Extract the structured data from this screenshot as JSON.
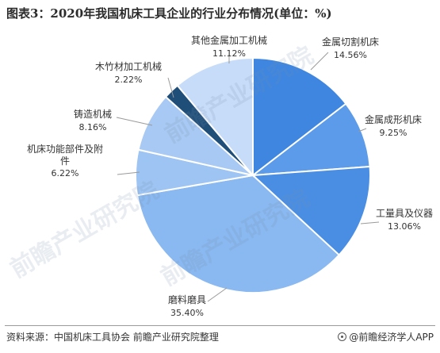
{
  "chart_data": {
    "type": "pie",
    "title": "图表3：2020年我国机床工具企业的行业分布情况(单位：%)",
    "slices": [
      {
        "name": "金属切割机床",
        "value": 14.56,
        "label": "14.56%",
        "color": "#3f86e0"
      },
      {
        "name": "金属成形机床",
        "value": 9.25,
        "label": "9.25%",
        "color": "#5b9bea"
      },
      {
        "name": "工量具及仪器",
        "value": 13.06,
        "label": "13.06%",
        "color": "#4a8ee4"
      },
      {
        "name": "磨料磨具",
        "value": 35.4,
        "label": "35.40%",
        "color": "#8ab8f0"
      },
      {
        "name": "机床功能部件及附件",
        "value": 6.22,
        "label": "6.22%",
        "color": "#9ec4f3"
      },
      {
        "name": "铸造机械",
        "value": 8.16,
        "label": "8.16%",
        "color": "#a8c9f3"
      },
      {
        "name": "木竹材加工机械",
        "value": 2.22,
        "label": "2.22%",
        "color": "#1f4e79"
      },
      {
        "name": "其他金属加工机械",
        "value": 11.12,
        "label": "11.12%",
        "color": "#c6dcf8"
      }
    ],
    "legend": "none"
  },
  "footer": {
    "source": "资料来源：中国机床工具协会 前瞻产业研究院整理",
    "brand": "@前瞻经济学人APP"
  },
  "watermark": "前瞻产业研究院"
}
